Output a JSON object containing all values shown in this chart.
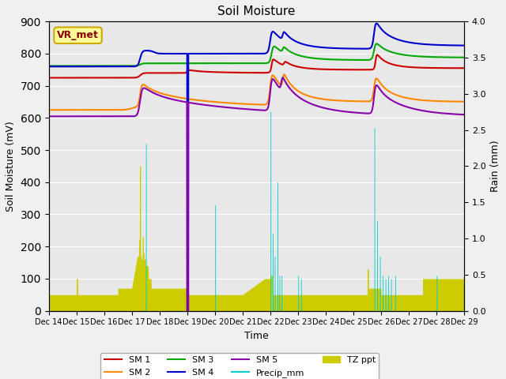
{
  "title": "Soil Moisture",
  "xlabel": "Time",
  "ylabel_left": "Soil Moisture (mV)",
  "ylabel_right": "Rain (mm)",
  "ylim_left": [
    0,
    900
  ],
  "ylim_right": [
    0,
    4.0
  ],
  "yticks_left": [
    0,
    100,
    200,
    300,
    400,
    500,
    600,
    700,
    800,
    900
  ],
  "yticks_right": [
    0.0,
    0.5,
    1.0,
    1.5,
    2.0,
    2.5,
    3.0,
    3.5,
    4.0
  ],
  "xtick_labels": [
    "Dec 14",
    "Dec 15",
    "Dec 16",
    "Dec 17",
    "Dec 18",
    "Dec 19",
    "Dec 20",
    "Dec 21",
    "Dec 22",
    "Dec 23",
    "Dec 24",
    "Dec 25",
    "Dec 26",
    "Dec 27",
    "Dec 28",
    "Dec 29"
  ],
  "annotation_text": "VR_met",
  "annotation_color": "#8B0000",
  "annotation_bg": "#FFFF99",
  "annotation_border": "#CCAA00",
  "colors": {
    "SM1": "#CC0000",
    "SM2": "#FF8800",
    "SM3": "#00AA00",
    "SM4": "#0000CC",
    "SM5": "#8800AA",
    "Precip": "#00CCCC",
    "TZ": "#CCCC00"
  },
  "bg_color": "#E8E8E8",
  "grid_color": "#FFFFFF"
}
